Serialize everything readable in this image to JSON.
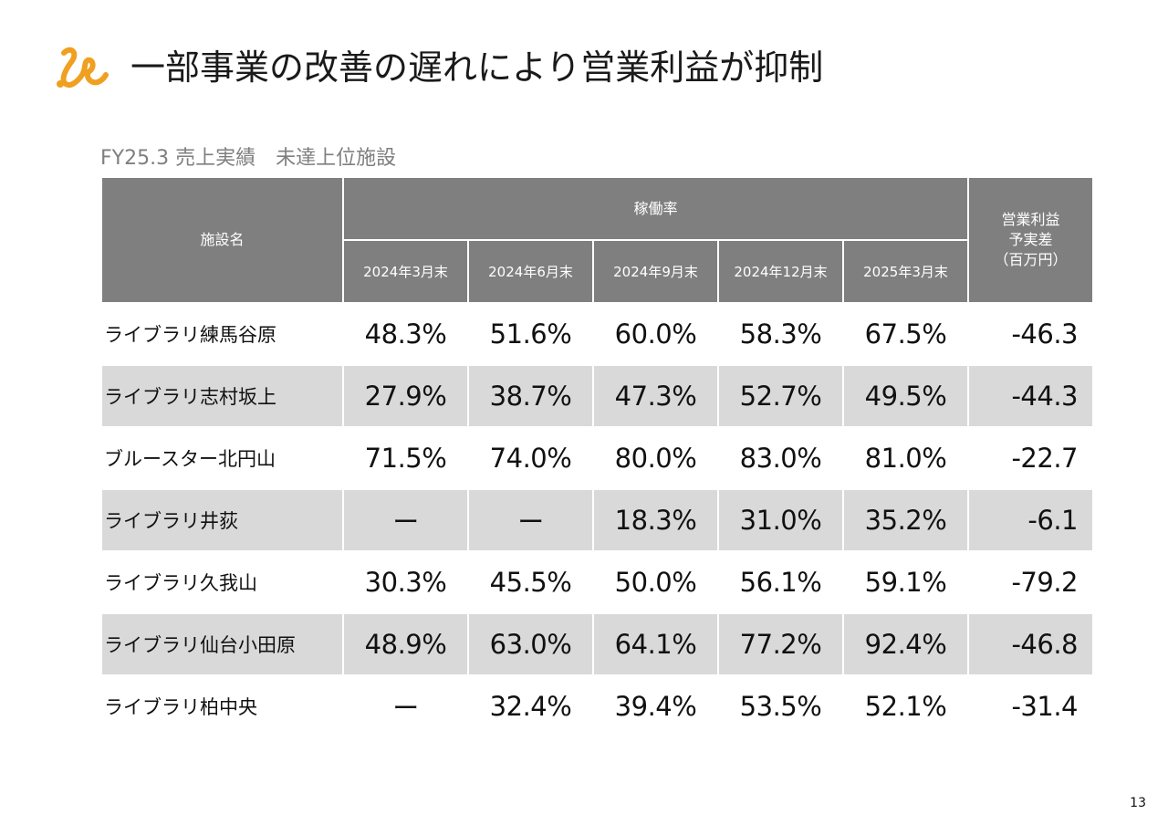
{
  "header": {
    "logo_icon": "orange-swirl-logo-icon",
    "logo_color": "#f0a020",
    "title": "一部事業の改善の遅れにより営業利益が抑制"
  },
  "section": {
    "subtitle": "FY25.3 売上実績　未達上位施設"
  },
  "table": {
    "header_color": "#7f7f7f",
    "stripe_color": "#d9d9d9",
    "headers": {
      "facility": "施設名",
      "occupancy": "稼働率",
      "profit_line1": "営業利益",
      "profit_line2": "予実差",
      "profit_line3": "（百万円）",
      "periods": [
        "2024年3月末",
        "2024年6月末",
        "2024年9月末",
        "2024年12月末",
        "2025年3月末"
      ]
    },
    "rows": [
      {
        "name": "ライブラリ練馬谷原",
        "rates": [
          "48.3%",
          "51.6%",
          "60.0%",
          "58.3%",
          "67.5%"
        ],
        "diff": "-46.3"
      },
      {
        "name": "ライブラリ志村坂上",
        "rates": [
          "27.9%",
          "38.7%",
          "47.3%",
          "52.7%",
          "49.5%"
        ],
        "diff": "-44.3"
      },
      {
        "name": "ブルースター北円山",
        "rates": [
          "71.5%",
          "74.0%",
          "80.0%",
          "83.0%",
          "81.0%"
        ],
        "diff": "-22.7"
      },
      {
        "name": "ライブラリ井荻",
        "rates": [
          "ー",
          "ー",
          "18.3%",
          "31.0%",
          "35.2%"
        ],
        "diff": "-6.1"
      },
      {
        "name": "ライブラリ久我山",
        "rates": [
          "30.3%",
          "45.5%",
          "50.0%",
          "56.1%",
          "59.1%"
        ],
        "diff": "-79.2"
      },
      {
        "name": "ライブラリ仙台小田原",
        "rates": [
          "48.9%",
          "63.0%",
          "64.1%",
          "77.2%",
          "92.4%"
        ],
        "diff": "-46.8"
      },
      {
        "name": "ライブラリ柏中央",
        "rates": [
          "ー",
          "32.4%",
          "39.4%",
          "53.5%",
          "52.1%"
        ],
        "diff": "-31.4"
      }
    ]
  },
  "footer": {
    "page_number": "13"
  }
}
